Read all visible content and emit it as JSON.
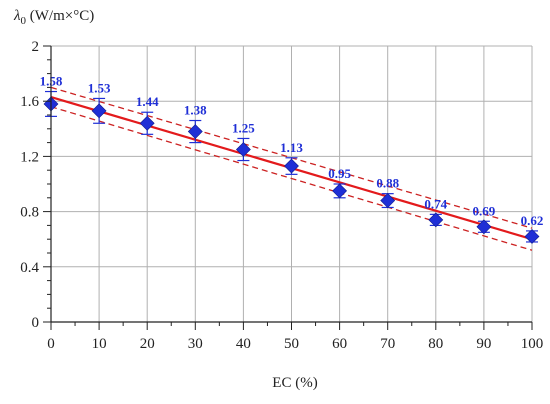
{
  "chart_data": {
    "type": "scatter",
    "title": "",
    "xlabel": "EC (%)",
    "ylabel": {
      "symbol": "λ",
      "subscript": "0",
      "unit": " (W/m×°C)"
    },
    "xlim": [
      0,
      100
    ],
    "ylim": [
      0,
      2
    ],
    "x_ticks": [
      "0",
      "10",
      "20",
      "30",
      "40",
      "50",
      "60",
      "70",
      "80",
      "90",
      "100"
    ],
    "y_ticks": [
      "0",
      "0.4",
      "0.8",
      "1.2",
      "1.6",
      "2"
    ],
    "grid": true,
    "x": [
      0,
      10,
      20,
      30,
      40,
      50,
      60,
      70,
      80,
      90,
      100
    ],
    "values": [
      1.58,
      1.53,
      1.44,
      1.38,
      1.25,
      1.13,
      0.95,
      0.88,
      0.74,
      0.69,
      0.62
    ],
    "data_labels": [
      "1.58",
      "1.53",
      "1.44",
      "1.38",
      "1.25",
      "1.13",
      "0.95",
      "0.88",
      "0.74",
      "0.69",
      "0.62"
    ],
    "error_bars": [
      0.09,
      0.09,
      0.08,
      0.08,
      0.08,
      0.06,
      0.05,
      0.05,
      0.04,
      0.04,
      0.04
    ],
    "trendline": {
      "x": [
        0,
        100
      ],
      "y": [
        1.63,
        0.6
      ]
    },
    "confidence_band": {
      "upper": {
        "x": [
          0,
          100
        ],
        "y": [
          1.7,
          0.68
        ]
      },
      "lower": {
        "x": [
          0,
          100
        ],
        "y": [
          1.56,
          0.52
        ]
      }
    },
    "colors": {
      "marker": "#1f2fd6",
      "trendline": "#e31a1c",
      "band": "#cc2222",
      "grid": "#b0b0b0"
    }
  }
}
